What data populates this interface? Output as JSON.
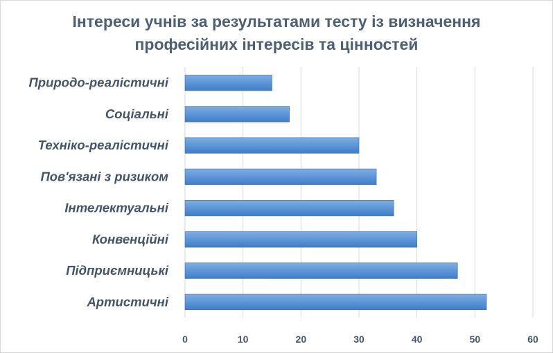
{
  "chart_data": {
    "type": "bar",
    "orientation": "horizontal",
    "title_line1": "Інтереси учнів за результатами тесту із визначення",
    "title_line2": "професійних інтересів та цінностей",
    "categories": [
      "Природо-реалістичні",
      "Соціальні",
      "Техніко-реалістичні",
      "Пов'язані з ризиком",
      "Інтелектуальні",
      "Конвенційні",
      "Підприємницькі",
      "Артистичні"
    ],
    "values": [
      15,
      18,
      30,
      33,
      36,
      40,
      47,
      52
    ],
    "xlim": [
      0,
      60
    ],
    "ticks": [
      "0",
      "10",
      "20",
      "30",
      "40",
      "50",
      "60"
    ],
    "grid": true,
    "legend": "none",
    "colors": {
      "bar_top": "#7eaee3",
      "bar_bottom": "#3f7dc9",
      "bar_edge": "#3a72b8",
      "grid": "#d9d9d9",
      "text": "#44546a"
    }
  }
}
